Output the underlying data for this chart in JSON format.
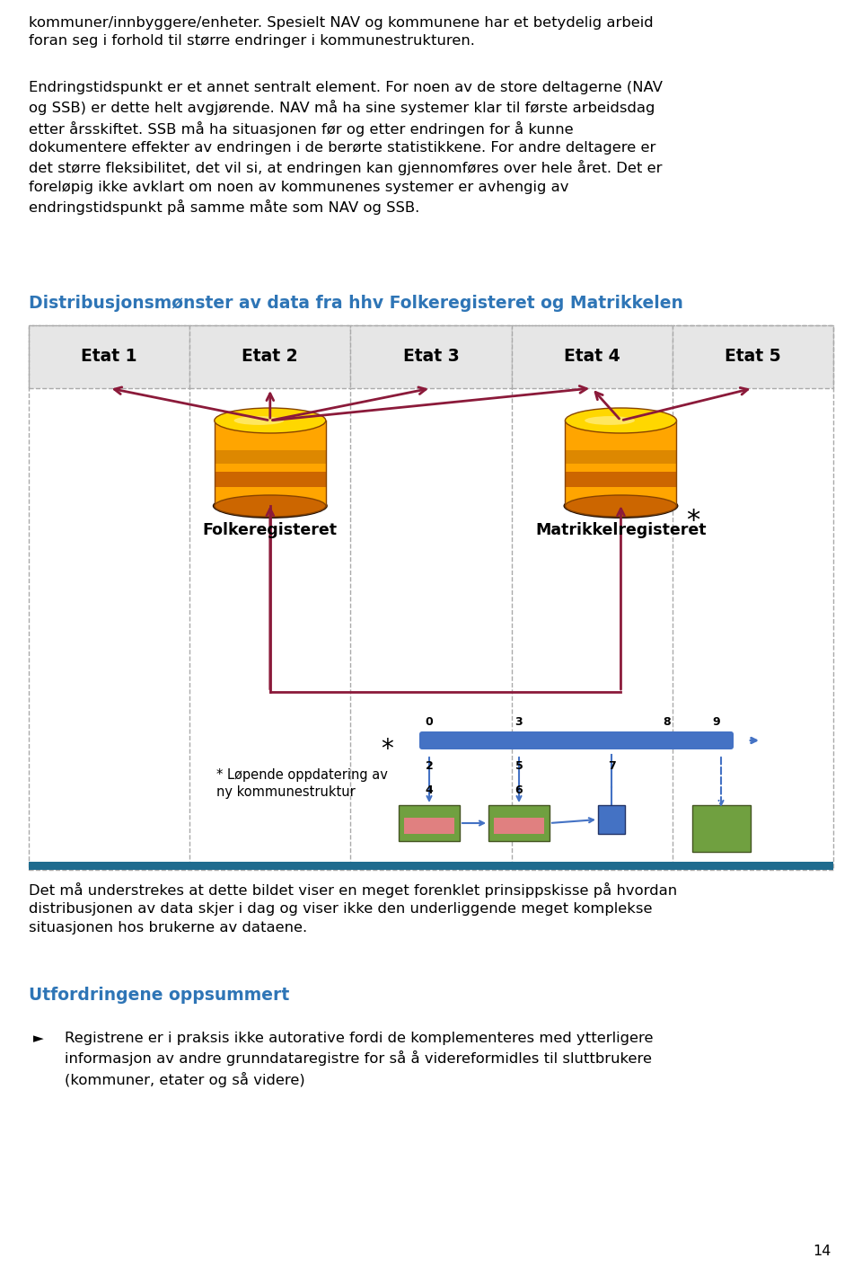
{
  "bg_color": "#ffffff",
  "text_color": "#000000",
  "blue_heading_color": "#2E75B6",
  "para1": "kommuner/innbyggere/enheter. Spesielt NAV og kommunene har et betydelig arbeid\nforan seg i forhold til større endringer i kommunestrukturen.",
  "para2": "Endringstidspunkt er et annet sentralt element. For noen av de store deltagerne (NAV\nog SSB) er dette helt avgjørende. NAV må ha sine systemer klar til første arbeidsdag\netter årsskiftet. SSB må ha situasjonen før og etter endringen for å kunne\ndokumentere effekter av endringen i de berørte statistikkene. For andre deltagere er\ndet større fleksibilitet, det vil si, at endringen kan gjennomføres over hele året. Det er\nforeløpig ikke avklart om noen av kommunenes systemer er avhengig av\nendringstidspunkt på samme måte som NAV og SSB.",
  "diagram_title": "Distribusjonsmønster av data fra hhv Folkeregisteret og Matrikkelen",
  "etat_labels": [
    "Etat 1",
    "Etat 2",
    "Etat 3",
    "Etat 4",
    "Etat 5"
  ],
  "folke_label": "Folkeregisteret",
  "matrikkel_label": "Matrikkelregisteret",
  "star_note": "* Løpende oppdatering av\nny kommunestruktur",
  "para3": "Det må understrekes at dette bildet viser en meget forenklet prinsippskisse på hvordan\ndistribusjonen av data skjer i dag og viser ikke den underliggende meget komplekse\nsituasjonen hos brukerne av dataene.",
  "heading2": "Utfordringene oppsummert",
  "bullet1": "Registrene er i praksis ikke autorative fordi de komplementeres med ytterligere\ninformasjon av andre grunndataregistre for så å videreformidles til sluttbrukere\n(kommuner, etater og så videre)",
  "page_num": "14",
  "arrow_color": "#8B1A3A",
  "dashed_color": "#AAAAAA",
  "teal_bar_color": "#1F6B8E",
  "green_box_color": "#70A040",
  "pink_box_color": "#E08080",
  "blue_bar_color": "#4472C4",
  "blue_small_box": "#4472C4"
}
